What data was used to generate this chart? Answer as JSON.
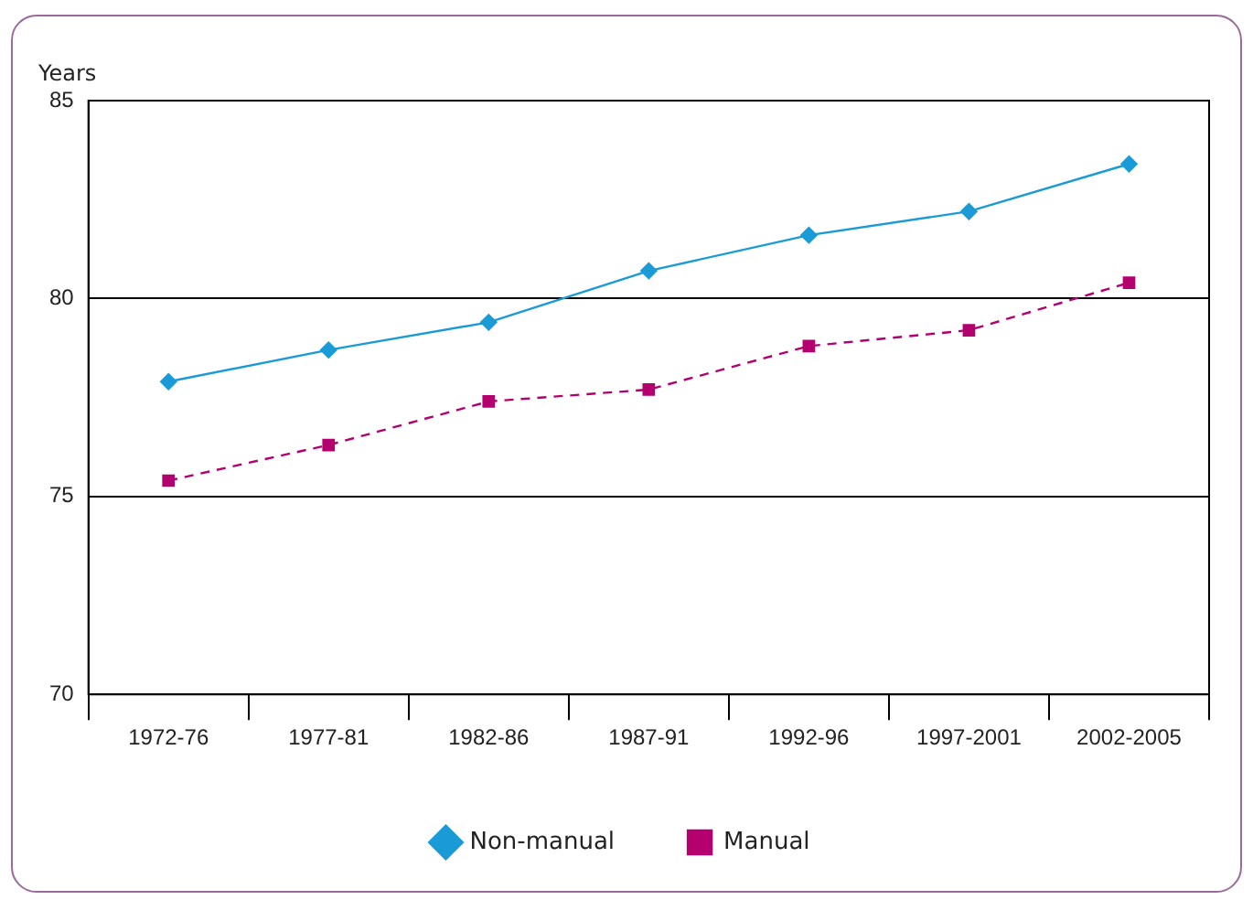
{
  "chart_data": {
    "type": "line",
    "ylabel": "Years",
    "categories": [
      "1972-76",
      "1977-81",
      "1982-86",
      "1987-91",
      "1992-96",
      "1997-2001",
      "2002-2005"
    ],
    "series": [
      {
        "name": "Non-manual",
        "color": "#1a9bd7",
        "marker": "diamond",
        "line_style": "solid",
        "values": [
          77.9,
          78.7,
          79.4,
          80.7,
          81.6,
          82.2,
          83.4
        ]
      },
      {
        "name": "Manual",
        "color": "#b4006e",
        "marker": "square",
        "line_style": "dashed",
        "values": [
          75.4,
          76.3,
          77.4,
          77.7,
          78.8,
          79.2,
          80.4
        ]
      }
    ],
    "ylim": [
      70,
      85
    ],
    "yticks": [
      70,
      75,
      80,
      85
    ],
    "grid": "y",
    "legend": "bottom"
  }
}
